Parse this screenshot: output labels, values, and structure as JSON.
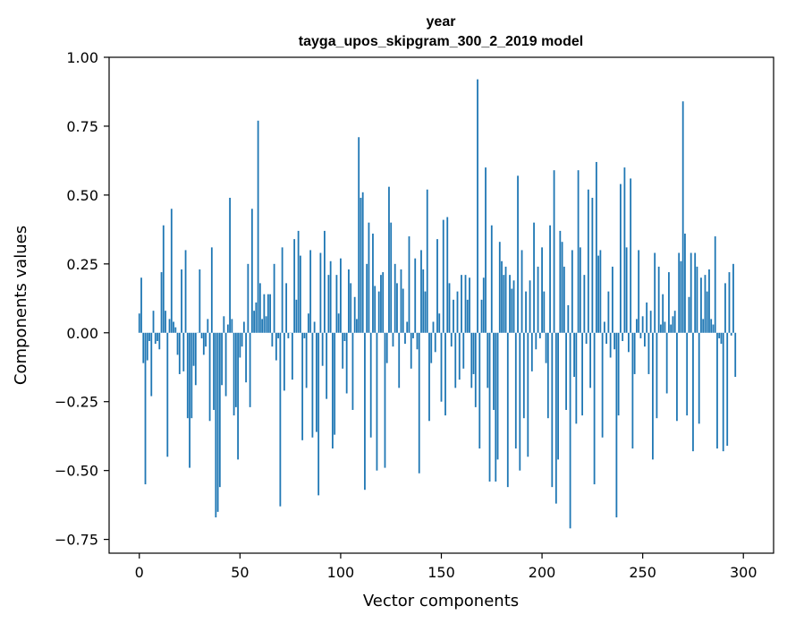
{
  "chart_data": {
    "type": "bar",
    "title": "year",
    "subtitle": "tayga_upos_skipgram_300_2_2019 model",
    "xlabel": "Vector components",
    "ylabel": "Components values",
    "xlim": [
      -15,
      315
    ],
    "ylim": [
      -0.8,
      1.0
    ],
    "xticks": [
      0,
      50,
      100,
      150,
      200,
      250,
      300
    ],
    "xtick_labels": [
      "0",
      "50",
      "100",
      "150",
      "200",
      "250",
      "300"
    ],
    "yticks": [
      -0.75,
      -0.5,
      -0.25,
      0.0,
      0.25,
      0.5,
      0.75,
      1.0
    ],
    "ytick_labels": [
      "−0.75",
      "−0.50",
      "−0.25",
      "0.00",
      "0.25",
      "0.50",
      "0.75",
      "1.00"
    ],
    "grid": false,
    "bar_color": "#1f77b4",
    "values": [
      0.07,
      0.2,
      -0.11,
      -0.55,
      -0.1,
      -0.03,
      -0.23,
      0.08,
      -0.04,
      -0.03,
      -0.06,
      0.22,
      0.39,
      0.08,
      -0.45,
      0.05,
      0.45,
      0.04,
      0.02,
      -0.08,
      -0.15,
      0.23,
      -0.14,
      0.3,
      -0.31,
      -0.49,
      -0.31,
      -0.12,
      -0.19,
      0.0,
      0.23,
      -0.02,
      -0.08,
      -0.05,
      0.05,
      -0.32,
      0.31,
      -0.28,
      -0.67,
      -0.65,
      -0.56,
      -0.19,
      0.06,
      -0.23,
      0.03,
      0.49,
      0.05,
      -0.3,
      -0.27,
      -0.46,
      -0.09,
      -0.05,
      0.04,
      -0.18,
      0.25,
      -0.27,
      0.45,
      0.08,
      0.11,
      0.77,
      0.18,
      0.05,
      0.14,
      0.06,
      0.14,
      0.14,
      -0.05,
      0.25,
      -0.1,
      -0.02,
      -0.63,
      0.31,
      -0.21,
      0.18,
      -0.02,
      0.0,
      -0.17,
      0.34,
      0.12,
      0.37,
      0.28,
      -0.39,
      -0.02,
      -0.2,
      0.07,
      0.3,
      -0.38,
      0.04,
      -0.36,
      -0.59,
      0.29,
      -0.12,
      0.37,
      -0.24,
      0.21,
      0.26,
      -0.42,
      -0.37,
      0.21,
      0.07,
      0.27,
      -0.13,
      -0.03,
      -0.22,
      0.23,
      0.18,
      -0.28,
      0.13,
      0.05,
      0.71,
      0.49,
      0.51,
      -0.57,
      0.25,
      0.4,
      -0.38,
      0.36,
      0.17,
      -0.5,
      0.15,
      0.21,
      0.22,
      -0.49,
      -0.11,
      0.53,
      0.4,
      -0.05,
      0.25,
      0.18,
      -0.2,
      0.23,
      0.16,
      -0.04,
      0.04,
      0.35,
      -0.13,
      -0.02,
      0.27,
      -0.06,
      -0.51,
      0.3,
      0.23,
      0.15,
      0.52,
      -0.32,
      -0.11,
      0.04,
      -0.07,
      0.34,
      0.07,
      -0.25,
      0.41,
      -0.3,
      0.42,
      0.18,
      -0.05,
      0.12,
      -0.2,
      0.15,
      -0.17,
      0.21,
      -0.13,
      0.21,
      0.12,
      0.2,
      -0.2,
      -0.15,
      -0.27,
      0.92,
      -0.42,
      0.12,
      0.2,
      0.6,
      -0.2,
      -0.54,
      0.39,
      -0.28,
      -0.54,
      -0.46,
      0.33,
      0.26,
      0.21,
      0.24,
      -0.56,
      0.21,
      0.16,
      0.19,
      -0.42,
      0.57,
      -0.5,
      0.3,
      -0.31,
      0.15,
      -0.45,
      0.19,
      -0.14,
      0.4,
      -0.06,
      0.24,
      -0.02,
      0.31,
      0.15,
      -0.11,
      -0.31,
      0.39,
      -0.56,
      0.59,
      -0.62,
      -0.46,
      0.37,
      0.33,
      0.24,
      -0.28,
      0.1,
      -0.71,
      0.3,
      -0.16,
      -0.33,
      0.59,
      0.31,
      -0.3,
      0.21,
      -0.04,
      0.52,
      -0.2,
      0.49,
      -0.55,
      0.62,
      0.28,
      0.3,
      -0.38,
      0.04,
      -0.04,
      0.15,
      -0.09,
      0.24,
      -0.06,
      -0.67,
      -0.3,
      0.54,
      -0.03,
      0.6,
      0.31,
      -0.07,
      0.56,
      -0.42,
      -0.15,
      0.05,
      0.3,
      -0.02,
      0.06,
      -0.05,
      0.11,
      -0.15,
      0.08,
      -0.46,
      0.29,
      -0.31,
      0.24,
      0.03,
      0.14,
      0.04,
      -0.22,
      0.22,
      0.03,
      0.06,
      0.08,
      -0.32,
      0.29,
      0.26,
      0.84,
      0.36,
      -0.3,
      0.13,
      0.29,
      -0.43,
      0.29,
      0.24,
      -0.33,
      0.2,
      0.05,
      0.21,
      0.15,
      0.23,
      0.05,
      0.03,
      0.35,
      -0.42,
      -0.02,
      -0.04,
      -0.43,
      0.18,
      -0.41,
      0.22,
      -0.01,
      0.25,
      -0.16
    ]
  }
}
